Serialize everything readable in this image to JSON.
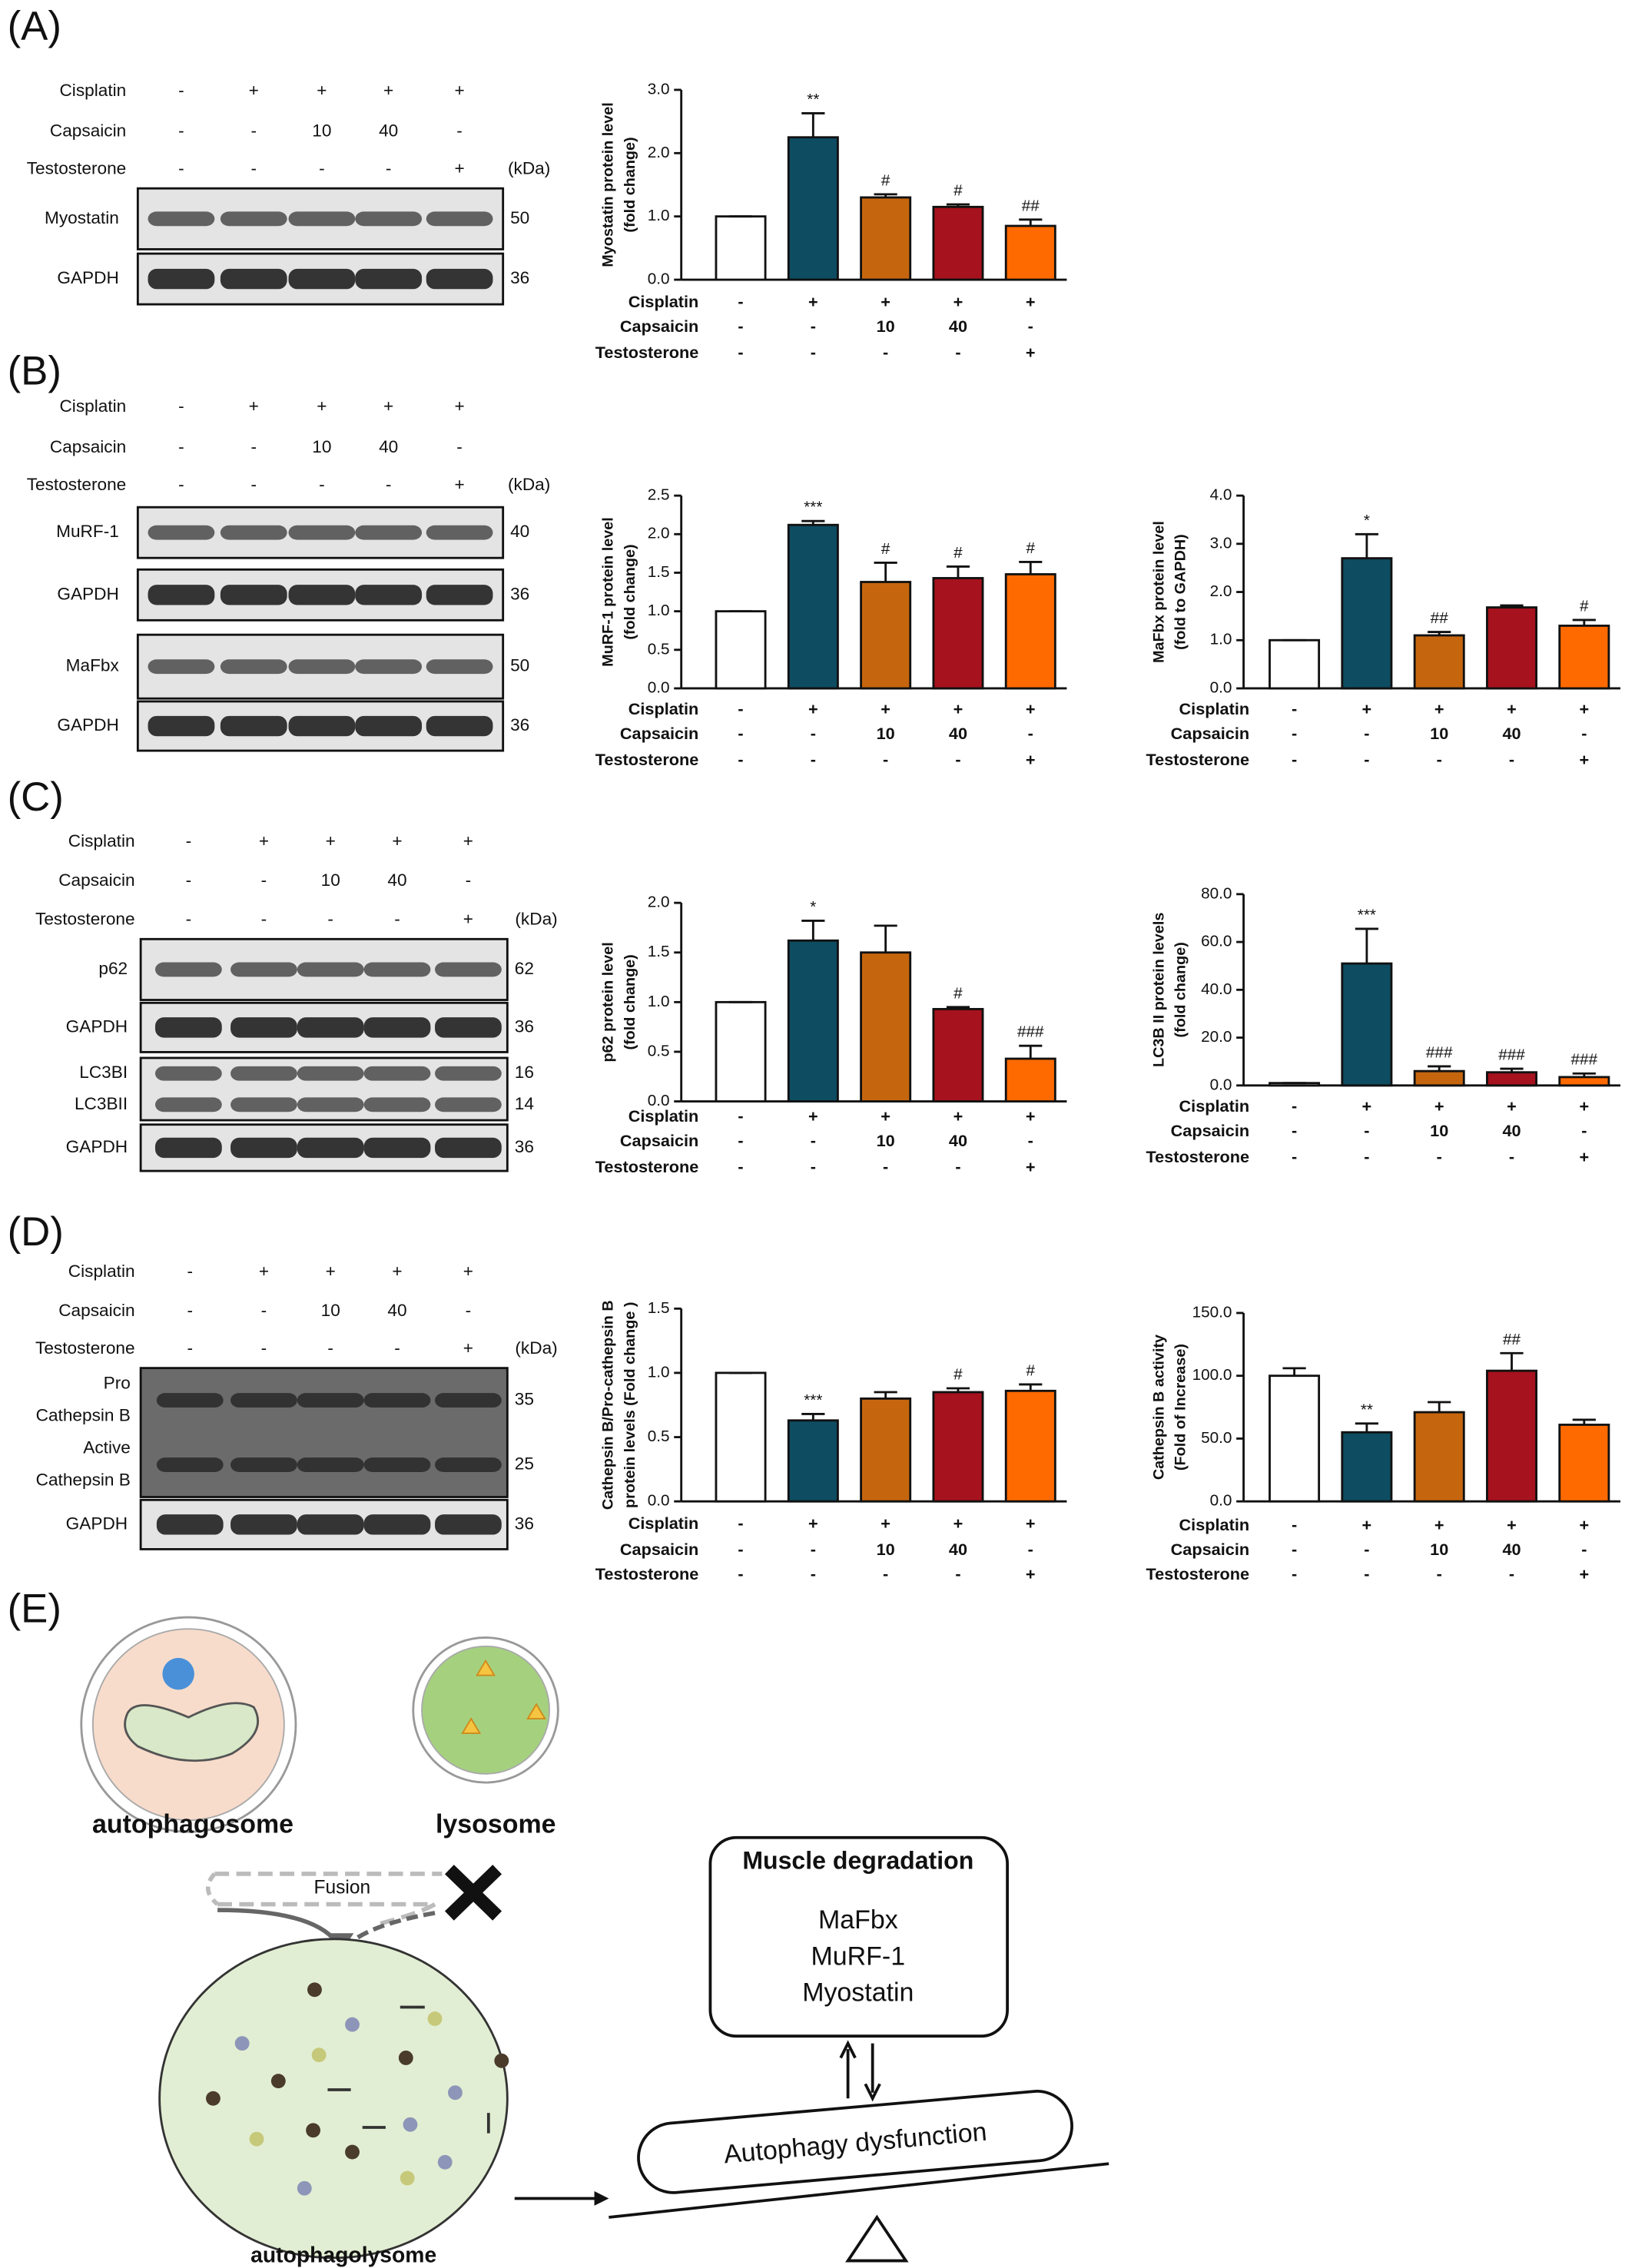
{
  "panel_labels": [
    "(A)",
    "(B)",
    "(C)",
    "(D)",
    "(E)"
  ],
  "blots": [
    {
      "treatments": [
        {
          "name": "Cisplatin",
          "values": [
            "-",
            "+",
            "+",
            "+",
            "+"
          ]
        },
        {
          "name": "Capsaicin",
          "values": [
            "-",
            "-",
            "10",
            "40",
            "-"
          ]
        },
        {
          "name": "Testosterone",
          "values": [
            "-",
            "-",
            "-",
            "-",
            "+"
          ]
        }
      ],
      "unit": "(kDa)",
      "rows": [
        {
          "labels": [
            "Myostatin"
          ],
          "kda": [
            50
          ]
        },
        {
          "labels": [
            "GAPDH"
          ],
          "kda": [
            36
          ]
        }
      ]
    },
    {
      "treatments": [
        {
          "name": "Cisplatin",
          "values": [
            "-",
            "+",
            "+",
            "+",
            "+"
          ]
        },
        {
          "name": "Capsaicin",
          "values": [
            "-",
            "-",
            "10",
            "40",
            "-"
          ]
        },
        {
          "name": "Testosterone",
          "values": [
            "-",
            "-",
            "-",
            "-",
            "+"
          ]
        }
      ],
      "unit": "(kDa)",
      "rows": [
        {
          "labels": [
            "MuRF-1"
          ],
          "kda": [
            40
          ]
        },
        {
          "labels": [
            "GAPDH"
          ],
          "kda": [
            36
          ]
        },
        {
          "labels": [
            "MaFbx"
          ],
          "kda": [
            50
          ]
        },
        {
          "labels": [
            "GAPDH"
          ],
          "kda": [
            36
          ]
        }
      ]
    },
    {
      "treatments": [
        {
          "name": "Cisplatin",
          "values": [
            "-",
            "+",
            "+",
            "+",
            "+"
          ]
        },
        {
          "name": "Capsaicin",
          "values": [
            "-",
            "-",
            "10",
            "40",
            "-"
          ]
        },
        {
          "name": "Testosterone",
          "values": [
            "-",
            "-",
            "-",
            "-",
            "+"
          ]
        }
      ],
      "unit": "(kDa)",
      "rows": [
        {
          "labels": [
            "p62"
          ],
          "kda": [
            62
          ]
        },
        {
          "labels": [
            "GAPDH"
          ],
          "kda": [
            36
          ]
        },
        {
          "labels": [
            "LC3BI",
            "LC3BII"
          ],
          "kda": [
            16,
            14
          ]
        },
        {
          "labels": [
            "GAPDH"
          ],
          "kda": [
            36
          ]
        }
      ]
    },
    {
      "treatments": [
        {
          "name": "Cisplatin",
          "values": [
            "-",
            "+",
            "+",
            "+",
            "+"
          ]
        },
        {
          "name": "Capsaicin",
          "values": [
            "-",
            "-",
            "10",
            "40",
            "-"
          ]
        },
        {
          "name": "Testosterone",
          "values": [
            "-",
            "-",
            "-",
            "-",
            "+"
          ]
        }
      ],
      "unit": "(kDa)",
      "rows": [
        {
          "labels": [
            "Pro",
            "Cathepsin B",
            "Active",
            "Cathepsin B"
          ],
          "kda": [
            35,
            25
          ]
        },
        {
          "labels": [
            "GAPDH"
          ],
          "kda": [
            36
          ]
        }
      ]
    }
  ],
  "chart_data": [
    {
      "type": "bar",
      "ylabel": [
        "Myostatin protein level",
        "(fold change)"
      ],
      "values": [
        1.0,
        2.25,
        1.3,
        1.15,
        0.85
      ],
      "errors": [
        0,
        0.38,
        0.05,
        0.04,
        0.1
      ],
      "annotations": [
        null,
        "**",
        "#",
        "#",
        "##"
      ],
      "colors": [
        "#ffffff",
        "#0e4c62",
        "#c5660f",
        "#a6121d",
        "#ff6a00"
      ],
      "ylim": [
        0,
        3
      ],
      "yticks": [
        {
          "value": 0,
          "label": "0.0"
        },
        {
          "value": 1,
          "label": "1.0"
        },
        {
          "value": 2,
          "label": "2.0"
        },
        {
          "value": 3,
          "label": "3.0"
        }
      ],
      "treatments": [
        {
          "name": "Cisplatin",
          "values": [
            "-",
            "+",
            "+",
            "+",
            "+"
          ]
        },
        {
          "name": "Capsaicin",
          "values": [
            "-",
            "-",
            "10",
            "40",
            "-"
          ]
        },
        {
          "name": "Testosterone",
          "values": [
            "-",
            "-",
            "-",
            "-",
            "+"
          ]
        }
      ]
    },
    {
      "type": "bar",
      "ylabel": [
        "MuRF-1 protein level",
        "(fold change)"
      ],
      "values": [
        1.0,
        2.12,
        1.38,
        1.43,
        1.48
      ],
      "errors": [
        0,
        0.05,
        0.25,
        0.15,
        0.16
      ],
      "annotations": [
        null,
        "***",
        "#",
        "#",
        "#"
      ],
      "colors": [
        "#ffffff",
        "#0e4c62",
        "#c5660f",
        "#a6121d",
        "#ff6a00"
      ],
      "ylim": [
        0,
        2.5
      ],
      "yticks": [
        {
          "value": 0,
          "label": "0.0"
        },
        0.5,
        {
          "value": 1,
          "label": "1.0"
        },
        1.5,
        {
          "value": 2,
          "label": "2.0"
        },
        2.5
      ],
      "treatments": [
        {
          "name": "Cisplatin",
          "values": [
            "-",
            "+",
            "+",
            "+",
            "+"
          ]
        },
        {
          "name": "Capsaicin",
          "values": [
            "-",
            "-",
            "10",
            "40",
            "-"
          ]
        },
        {
          "name": "Testosterone",
          "values": [
            "-",
            "-",
            "-",
            "-",
            "+"
          ]
        }
      ]
    },
    {
      "type": "bar",
      "ylabel": [
        "MaFbx protein level",
        "(fold to GAPDH)"
      ],
      "values": [
        1.0,
        2.7,
        1.1,
        1.68,
        1.3
      ],
      "errors": [
        0,
        0.5,
        0.07,
        0.04,
        0.12
      ],
      "annotations": [
        null,
        "*",
        "##",
        null,
        "#"
      ],
      "colors": [
        "#ffffff",
        "#0e4c62",
        "#c5660f",
        "#a6121d",
        "#ff6a00"
      ],
      "ylim": [
        0,
        4
      ],
      "yticks": [
        {
          "value": 0,
          "label": "0.0"
        },
        {
          "value": 1,
          "label": "1.0"
        },
        {
          "value": 2,
          "label": "2.0"
        },
        {
          "value": 3,
          "label": "3.0"
        },
        {
          "value": 4,
          "label": "4.0"
        }
      ],
      "treatments": [
        {
          "name": "Cisplatin",
          "values": [
            "-",
            "+",
            "+",
            "+",
            "+"
          ]
        },
        {
          "name": "Capsaicin",
          "values": [
            "-",
            "-",
            "10",
            "40",
            "-"
          ]
        },
        {
          "name": "Testosterone",
          "values": [
            "-",
            "-",
            "-",
            "-",
            "+"
          ]
        }
      ]
    },
    {
      "type": "bar",
      "ylabel": [
        "p62 protein level",
        "(fold change)"
      ],
      "values": [
        1.0,
        1.62,
        1.5,
        0.93,
        0.43
      ],
      "errors": [
        0,
        0.2,
        0.27,
        0.02,
        0.13
      ],
      "annotations": [
        null,
        "*",
        null,
        "#",
        "###"
      ],
      "colors": [
        "#ffffff",
        "#0e4c62",
        "#c5660f",
        "#a6121d",
        "#ff6a00"
      ],
      "ylim": [
        0,
        2
      ],
      "yticks": [
        {
          "value": 0,
          "label": "0.0"
        },
        0.5,
        {
          "value": 1,
          "label": "1.0"
        },
        1.5,
        {
          "value": 2,
          "label": "2.0"
        }
      ],
      "treatments": [
        {
          "name": "Cisplatin",
          "values": [
            "-",
            "+",
            "+",
            "+",
            "+"
          ]
        },
        {
          "name": "Capsaicin",
          "values": [
            "-",
            "-",
            "10",
            "40",
            "-"
          ]
        },
        {
          "name": "Testosterone",
          "values": [
            "-",
            "-",
            "-",
            "-",
            "+"
          ]
        }
      ]
    },
    {
      "type": "bar",
      "ylabel": [
        "LC3B II protein levels",
        "(fold change)"
      ],
      "values": [
        1.0,
        51,
        6,
        5.5,
        3.5
      ],
      "errors": [
        0,
        14.5,
        2,
        1.5,
        1.5
      ],
      "annotations": [
        null,
        "***",
        "###",
        "###",
        "###"
      ],
      "colors": [
        "#ffffff",
        "#0e4c62",
        "#c5660f",
        "#a6121d",
        "#ff6a00"
      ],
      "ylim": [
        0,
        80
      ],
      "yticks": [
        {
          "value": 0,
          "label": "0.0"
        },
        {
          "value": 20,
          "label": "20.0"
        },
        {
          "value": 40,
          "label": "40.0"
        },
        {
          "value": 60,
          "label": "60.0"
        },
        {
          "value": 80,
          "label": "80.0"
        }
      ],
      "treatments": [
        {
          "name": "Cisplatin",
          "values": [
            "-",
            "+",
            "+",
            "+",
            "+"
          ]
        },
        {
          "name": "Capsaicin",
          "values": [
            "-",
            "-",
            "10",
            "40",
            "-"
          ]
        },
        {
          "name": "Testosterone",
          "values": [
            "-",
            "-",
            "-",
            "-",
            "+"
          ]
        }
      ]
    },
    {
      "type": "bar",
      "ylabel": [
        "Cathepsin B/Pro-cathepsin B",
        "protein levels (Fold change )"
      ],
      "values": [
        1.0,
        0.63,
        0.8,
        0.85,
        0.86
      ],
      "errors": [
        0,
        0.05,
        0.05,
        0.03,
        0.05
      ],
      "annotations": [
        null,
        "***",
        null,
        "#",
        "#"
      ],
      "colors": [
        "#ffffff",
        "#0e4c62",
        "#c5660f",
        "#a6121d",
        "#ff6a00"
      ],
      "ylim": [
        0,
        1.5
      ],
      "yticks": [
        {
          "value": 0,
          "label": "0.0"
        },
        0.5,
        {
          "value": 1,
          "label": "1.0"
        },
        1.5
      ],
      "treatments": [
        {
          "name": "Cisplatin",
          "values": [
            "-",
            "+",
            "+",
            "+",
            "+"
          ]
        },
        {
          "name": "Capsaicin",
          "values": [
            "-",
            "-",
            "10",
            "40",
            "-"
          ]
        },
        {
          "name": "Testosterone",
          "values": [
            "-",
            "-",
            "-",
            "-",
            "+"
          ]
        }
      ]
    },
    {
      "type": "bar",
      "ylabel": [
        "Cathepsin B activity",
        "(Fold of Increase)"
      ],
      "values": [
        100,
        55,
        71,
        104,
        61
      ],
      "errors": [
        6,
        7,
        8,
        14,
        4
      ],
      "annotations": [
        null,
        "**",
        null,
        "##",
        null
      ],
      "colors": [
        "#ffffff",
        "#0e4c62",
        "#c5660f",
        "#a6121d",
        "#ff6a00"
      ],
      "ylim": [
        0,
        150
      ],
      "yticks": [
        {
          "value": 0,
          "label": "0.0"
        },
        {
          "value": 50,
          "label": "50.0"
        },
        {
          "value": 100,
          "label": "100.0"
        },
        {
          "value": 150,
          "label": "150.0"
        }
      ],
      "treatments": [
        {
          "name": "Cisplatin",
          "values": [
            "-",
            "+",
            "+",
            "+",
            "+"
          ]
        },
        {
          "name": "Capsaicin",
          "values": [
            "-",
            "-",
            "10",
            "40",
            "-"
          ]
        },
        {
          "name": "Testosterone",
          "values": [
            "-",
            "-",
            "-",
            "-",
            "+"
          ]
        }
      ]
    }
  ],
  "diagram": {
    "autophagosome": "autophagosome",
    "lysosome": "lysosome",
    "fusion": "Fusion",
    "autophagolysome": "autophagolysome",
    "box_title": "Muscle degradation",
    "box_items": [
      "MaFbx",
      "MuRF-1",
      "Myostatin"
    ],
    "balance": "Autophagy dysfunction"
  }
}
